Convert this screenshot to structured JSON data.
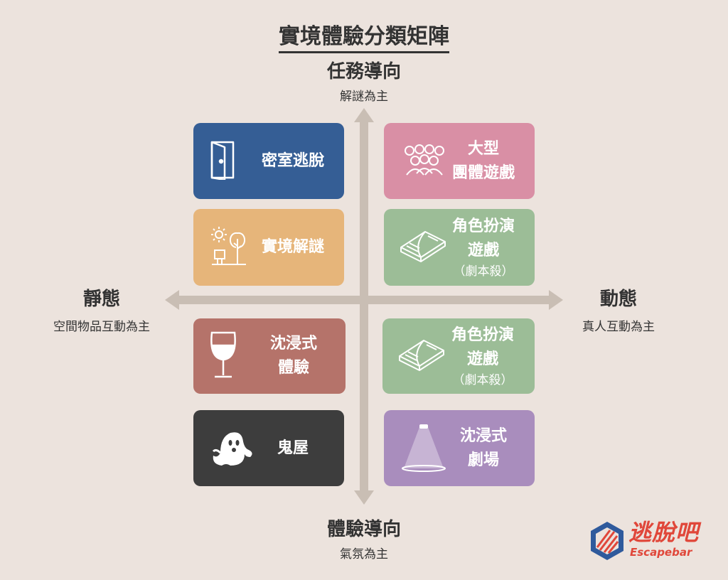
{
  "title": "實境體驗分類矩陣",
  "axes": {
    "top": {
      "title": "任務導向",
      "sub": "解謎為主"
    },
    "bottom": {
      "title": "體驗導向",
      "sub": "氣氛為主"
    },
    "left": {
      "title": "靜態",
      "sub": "空間物品互動為主"
    },
    "right": {
      "title": "動態",
      "sub": "真人互動為主"
    }
  },
  "cards": [
    {
      "lines": [
        "密室逃脫"
      ],
      "sub": "",
      "color": "#355e95",
      "icon": "door-icon"
    },
    {
      "lines": [
        "大型",
        "團體遊戲"
      ],
      "sub": "",
      "color": "#d98fa5",
      "icon": "group-icon"
    },
    {
      "lines": [
        "實境解謎"
      ],
      "sub": "",
      "color": "#e6b57a",
      "icon": "outdoor-scene-icon"
    },
    {
      "lines": [
        "角色扮演",
        "遊戲"
      ],
      "sub": "（劇本殺）",
      "color": "#9cbd97",
      "icon": "open-book-icon"
    },
    {
      "lines": [
        "沈浸式",
        "體驗"
      ],
      "sub": "",
      "color": "#b5736a",
      "icon": "wine-glass-icon"
    },
    {
      "lines": [
        "角色扮演",
        "遊戲"
      ],
      "sub": "（劇本殺）",
      "color": "#9cbd97",
      "icon": "open-book-icon"
    },
    {
      "lines": [
        "鬼屋"
      ],
      "sub": "",
      "color": "#3d3d3d",
      "icon": "ghost-icon"
    },
    {
      "lines": [
        "沈浸式",
        "劇場"
      ],
      "sub": "",
      "color": "#a98dbd",
      "icon": "spotlight-icon"
    }
  ],
  "logo": {
    "name": "逃脫吧",
    "sub": "Escapebar",
    "color": "#e0473a",
    "accent": "#2f5a9c"
  }
}
